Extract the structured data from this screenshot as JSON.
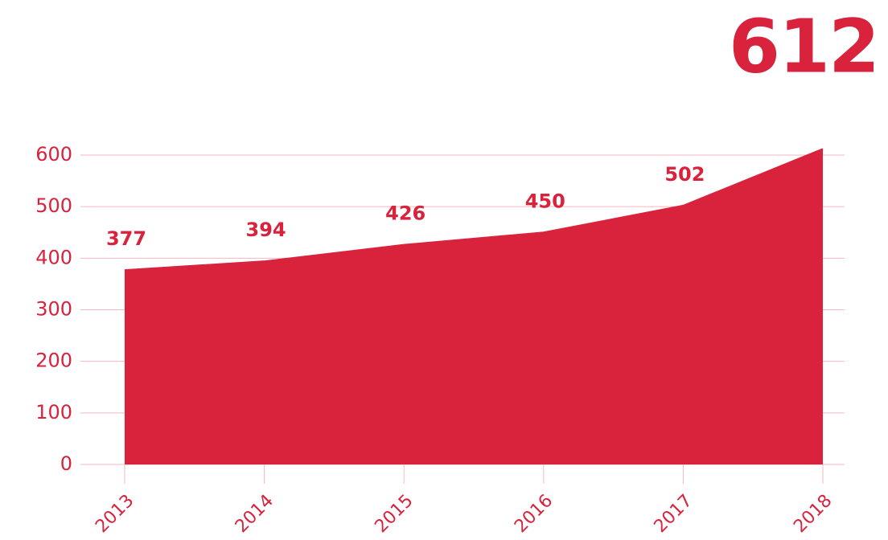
{
  "chart_data": {
    "type": "area",
    "categories": [
      "2013",
      "2014",
      "2015",
      "2016",
      "2017",
      "2018"
    ],
    "values": [
      377,
      394,
      426,
      450,
      502,
      612
    ],
    "color": "#d9223c",
    "ylim": [
      0,
      600
    ],
    "yticks": [
      0,
      100,
      200,
      300,
      400,
      500,
      600
    ],
    "grid": true
  }
}
